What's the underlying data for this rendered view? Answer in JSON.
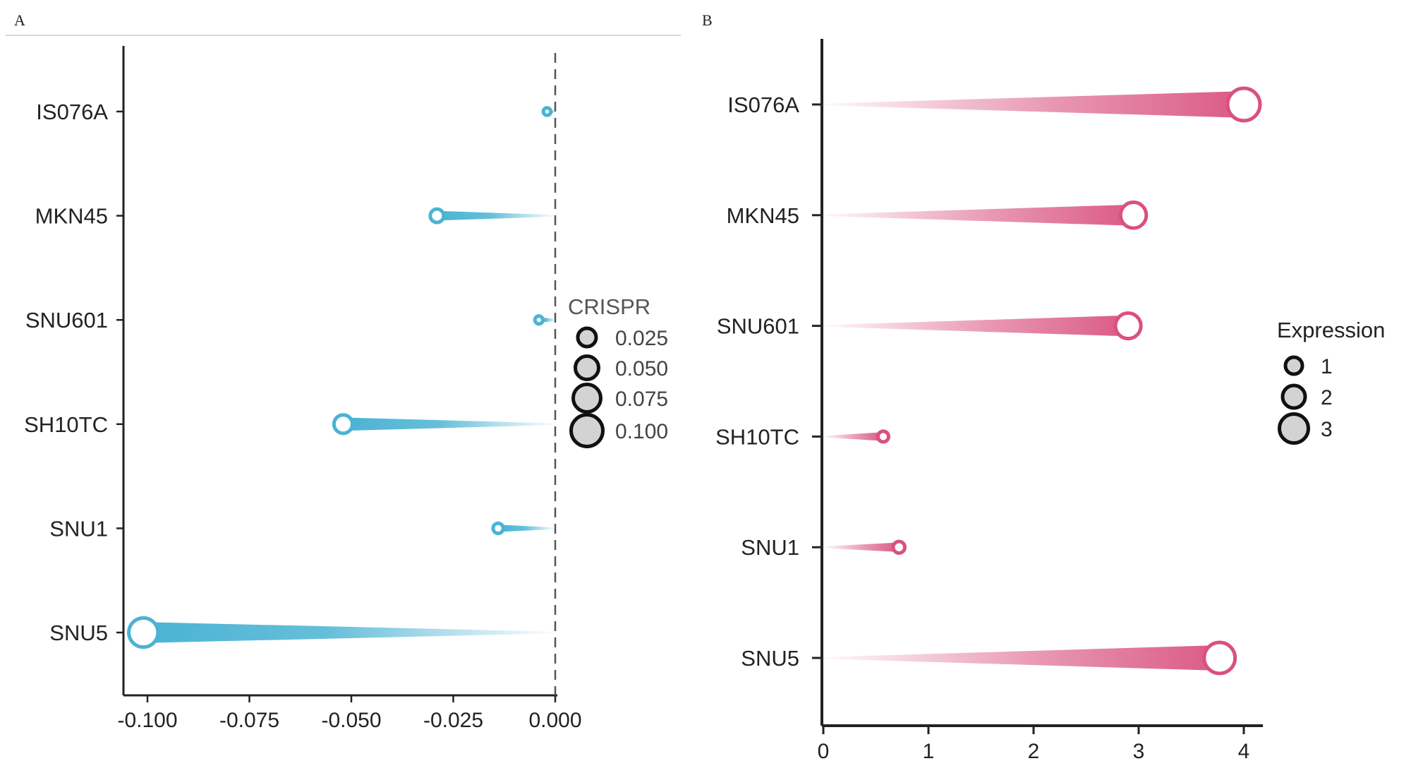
{
  "chart_data": [
    {
      "panel": "A",
      "type": "lollipop",
      "orientation": "horizontal",
      "categories": [
        "IS076A",
        "MKN45",
        "SNU601",
        "SH10TC",
        "SNU1",
        "SNU5"
      ],
      "values": [
        -0.002,
        -0.029,
        -0.004,
        -0.052,
        -0.014,
        -0.101
      ],
      "color": "#4bb3d3",
      "xlim": [
        -0.105,
        0.002
      ],
      "xticks": [
        -0.1,
        -0.075,
        -0.05,
        -0.025,
        0.0
      ],
      "xtick_labels": [
        "-0.100",
        "-0.075",
        "-0.050",
        "-0.025",
        "0.000"
      ],
      "reference_line": 0.0,
      "legend": {
        "title": "CRISPR",
        "sizes": [
          0.025,
          0.05,
          0.075,
          0.1
        ],
        "labels": [
          "0.025",
          "0.050",
          "0.075",
          "0.100"
        ],
        "placement": "right"
      },
      "xlabel": "",
      "ylabel": ""
    },
    {
      "panel": "B",
      "type": "lollipop",
      "orientation": "horizontal",
      "categories": [
        "IS076A",
        "MKN45",
        "SNU601",
        "SH10TC",
        "SNU1",
        "SNU5"
      ],
      "values": [
        4.0,
        2.95,
        2.9,
        0.57,
        0.72,
        3.77
      ],
      "color": "#d9517f",
      "xlim": [
        0,
        4.2
      ],
      "xticks": [
        0,
        1,
        2,
        3,
        4
      ],
      "xtick_labels": [
        "0",
        "1",
        "2",
        "3",
        "4"
      ],
      "legend": {
        "title": "Expression",
        "sizes": [
          1,
          2,
          3
        ],
        "labels": [
          "1",
          "2",
          "3"
        ],
        "placement": "right"
      },
      "xlabel": "",
      "ylabel": ""
    }
  ],
  "colors": {
    "axis": "#222222",
    "legend_fill": "#d3d3d3",
    "text": "#222222"
  }
}
